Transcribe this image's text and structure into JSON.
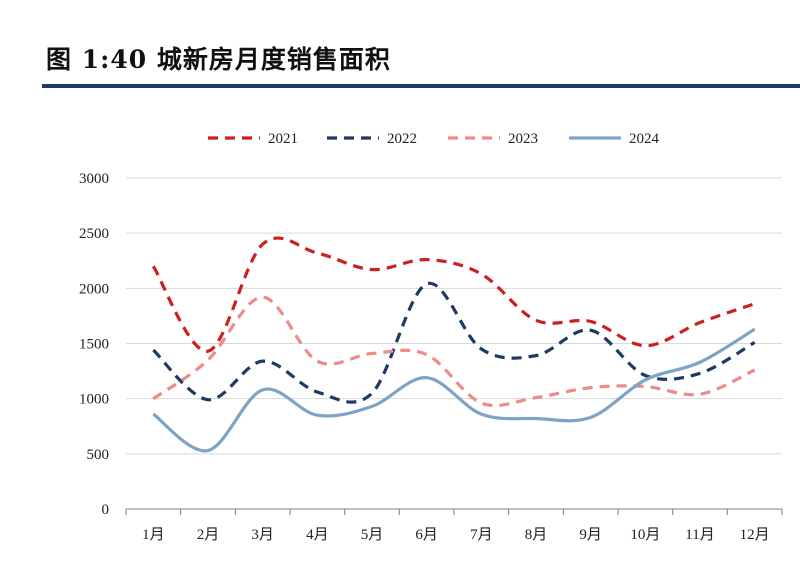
{
  "title": "图 1:40 城新房月度销售面积",
  "colors": {
    "title_rule": "#1f3864",
    "grid": "#d9d9d9",
    "axis": "#7f7f7f"
  },
  "chart_data": {
    "type": "line",
    "title": "",
    "xlabel": "",
    "ylabel": "",
    "categories": [
      "1月",
      "2月",
      "3月",
      "4月",
      "5月",
      "6月",
      "7月",
      "8月",
      "9月",
      "10月",
      "11月",
      "12月"
    ],
    "ylim": [
      0,
      3000
    ],
    "yticks": [
      0,
      500,
      1000,
      1500,
      2000,
      2500,
      3000
    ],
    "grid": "horizontal",
    "legend": "top",
    "series": [
      {
        "name": "2021",
        "color": "#cc1f1f",
        "style": "dashed",
        "values": [
          2200,
          1430,
          2400,
          2320,
          2170,
          2260,
          2130,
          1710,
          1700,
          1480,
          1690,
          1860
        ]
      },
      {
        "name": "2022",
        "color": "#1f3864",
        "style": "dashed",
        "values": [
          1440,
          990,
          1340,
          1060,
          1050,
          2040,
          1450,
          1390,
          1620,
          1210,
          1230,
          1510
        ]
      },
      {
        "name": "2023",
        "color": "#ee8a8a",
        "style": "dashed",
        "values": [
          1000,
          1350,
          1920,
          1340,
          1410,
          1400,
          960,
          1010,
          1100,
          1110,
          1040,
          1260
        ]
      },
      {
        "name": "2024",
        "color": "#7fa3c4",
        "style": "solid",
        "values": [
          860,
          530,
          1080,
          850,
          930,
          1190,
          860,
          820,
          830,
          1170,
          1330,
          1630
        ]
      }
    ]
  }
}
